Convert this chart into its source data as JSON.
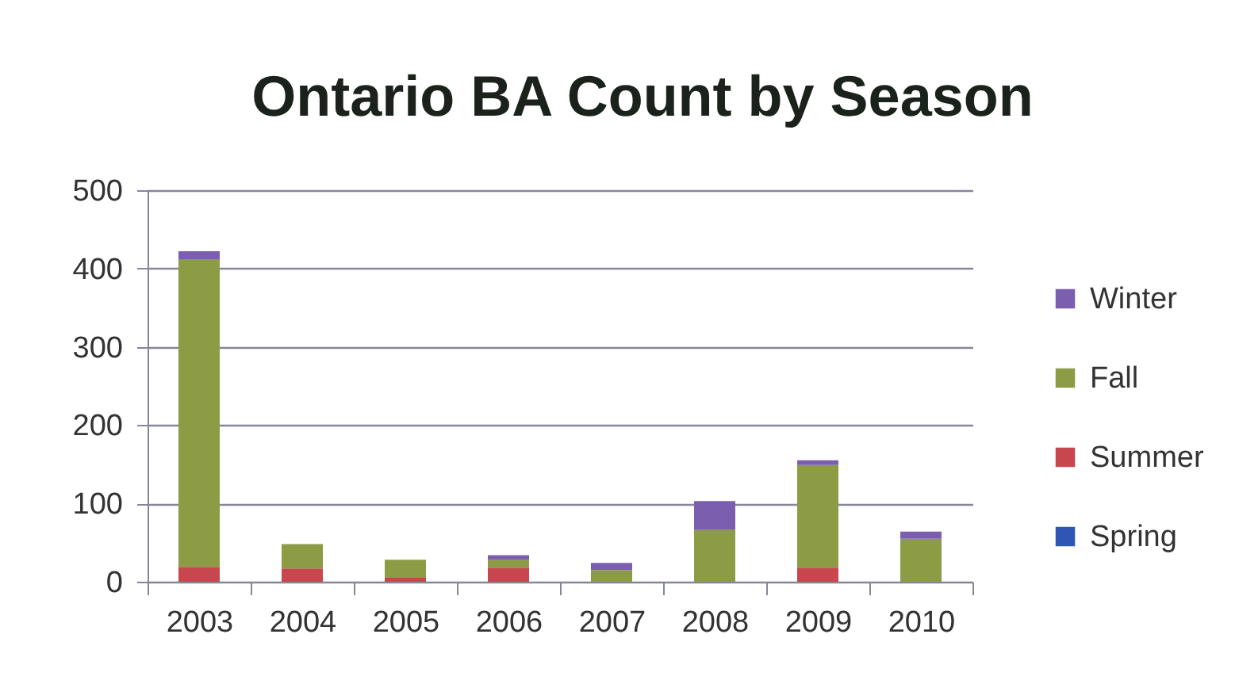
{
  "chart_data": {
    "type": "bar",
    "title": "Ontario BA Count by Season",
    "categories": [
      "2003",
      "2004",
      "2005",
      "2006",
      "2007",
      "2008",
      "2009",
      "2010"
    ],
    "stacked": true,
    "series": [
      {
        "name": "Spring",
        "color": "#2f55b5",
        "values": [
          0,
          0,
          0,
          0,
          0,
          0,
          0,
          0
        ]
      },
      {
        "name": "Summer",
        "color": "#c8474e",
        "values": [
          19,
          17,
          5,
          18,
          0,
          0,
          18,
          0
        ]
      },
      {
        "name": "Fall",
        "color": "#8c9c44",
        "values": [
          393,
          31,
          23,
          10,
          15,
          66,
          131,
          55
        ]
      },
      {
        "name": "Winter",
        "color": "#7b5fae",
        "values": [
          10,
          0,
          0,
          6,
          9,
          37,
          6,
          9
        ]
      }
    ],
    "ylim": [
      0,
      500
    ],
    "yticks": [
      0,
      100,
      200,
      300,
      400,
      500
    ],
    "grid": "y",
    "legend": "right"
  }
}
